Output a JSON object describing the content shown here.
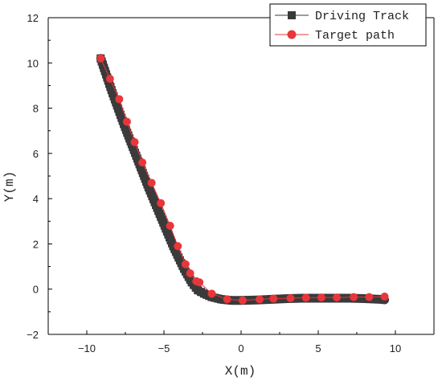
{
  "chart_data": {
    "type": "line",
    "xlabel": "X(m)",
    "ylabel": "Y(m)",
    "xlim": [
      -12.5,
      12.5
    ],
    "ylim": [
      -2,
      12
    ],
    "xticks": [
      -10,
      -5,
      0,
      5,
      10
    ],
    "yticks": [
      -2,
      0,
      2,
      4,
      6,
      8,
      10,
      12
    ],
    "xtick_labels": [
      "−10",
      "−5",
      "0",
      "5",
      "10"
    ],
    "ytick_labels": [
      "−2",
      "0",
      "2",
      "4",
      "6",
      "8",
      "10",
      "12"
    ],
    "legend_position": "top-right",
    "series": [
      {
        "name": "Driving Track",
        "marker": "square",
        "color": "#3a3a3a",
        "x": [
          -9.1,
          -8.4,
          -7.6,
          -6.8,
          -6.0,
          -5.2,
          -4.4,
          -3.7,
          -3.2,
          -2.8,
          -2.4,
          -1.9,
          -1.3,
          -0.6,
          0.0,
          1.0,
          2.0,
          3.0,
          4.0,
          5.0,
          6.0,
          7.0,
          8.0,
          9.0,
          9.3
        ],
        "y": [
          10.2,
          8.8,
          7.3,
          5.9,
          4.5,
          3.2,
          1.9,
          0.9,
          0.3,
          -0.05,
          -0.2,
          -0.35,
          -0.45,
          -0.5,
          -0.5,
          -0.48,
          -0.45,
          -0.42,
          -0.4,
          -0.4,
          -0.4,
          -0.4,
          -0.42,
          -0.45,
          -0.47
        ]
      },
      {
        "name": "Target path",
        "marker": "circle",
        "color": "#e8363a",
        "x": [
          -9.1,
          -8.5,
          -7.9,
          -7.4,
          -6.9,
          -6.4,
          -5.8,
          -5.2,
          -4.6,
          -4.1,
          -3.6,
          -3.3,
          -2.9,
          -2.7,
          -1.9,
          -0.9,
          0.1,
          1.2,
          2.1,
          3.2,
          4.2,
          5.2,
          6.2,
          7.3,
          8.3,
          9.3
        ],
        "y": [
          10.2,
          9.3,
          8.4,
          7.4,
          6.5,
          5.6,
          4.7,
          3.8,
          2.8,
          1.9,
          1.1,
          0.7,
          0.35,
          0.3,
          -0.2,
          -0.45,
          -0.5,
          -0.45,
          -0.42,
          -0.4,
          -0.38,
          -0.37,
          -0.37,
          -0.35,
          -0.35,
          -0.33
        ]
      }
    ]
  }
}
